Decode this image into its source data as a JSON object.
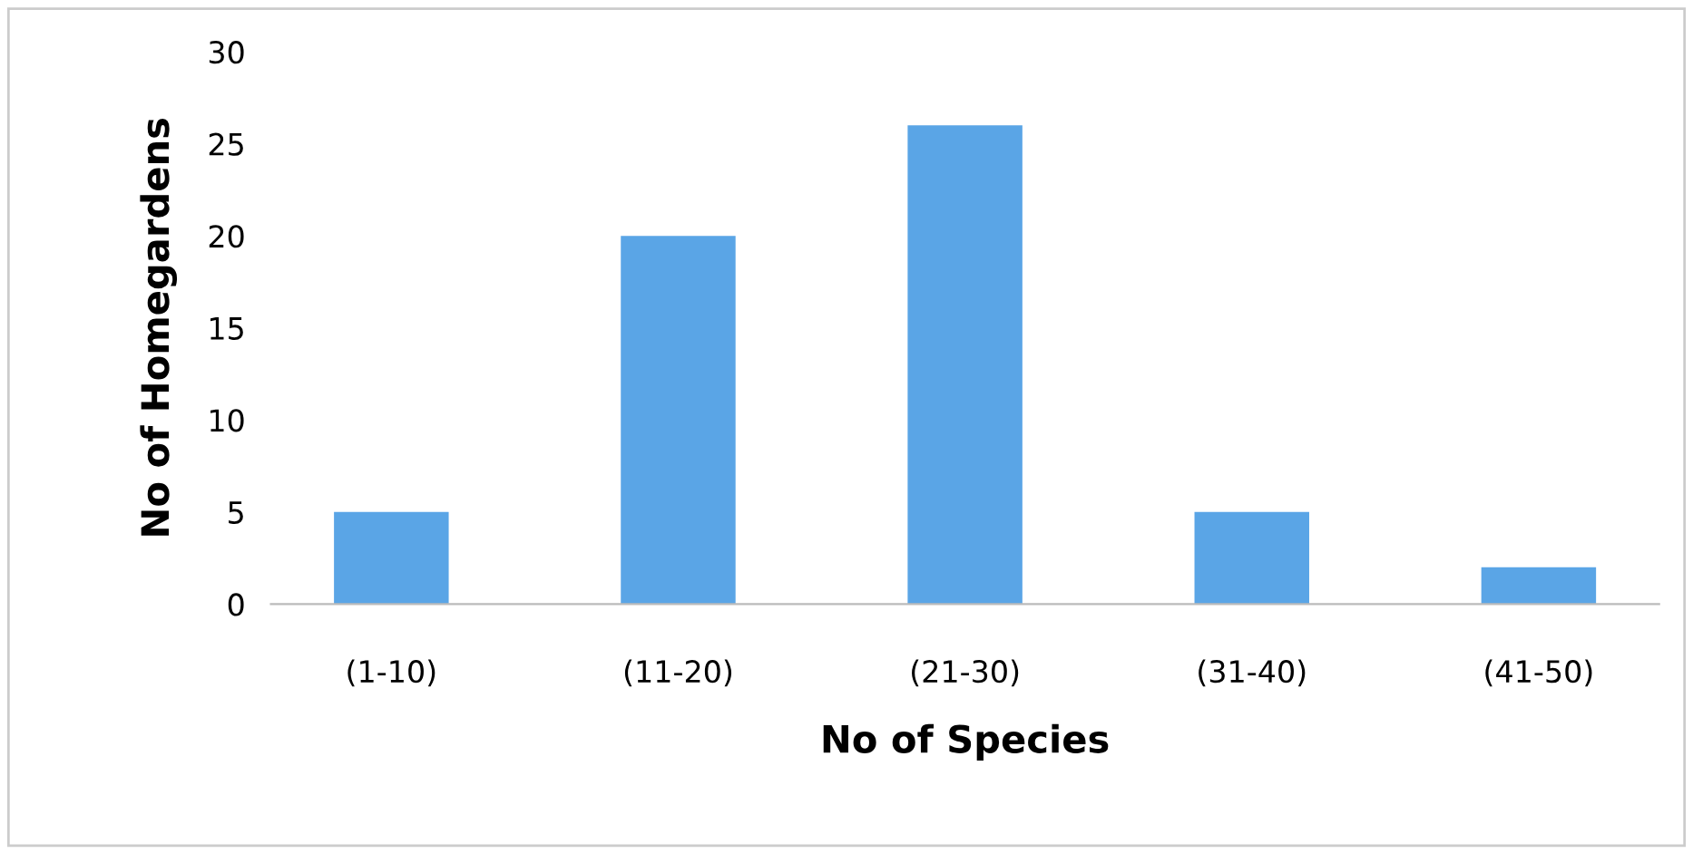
{
  "chart_data": {
    "type": "bar",
    "xlabel": "No of Species",
    "ylabel": "No of Homegardens",
    "categories": [
      "(1-10)",
      "(11-20)",
      "(21-30)",
      "(31-40)",
      "(41-50)"
    ],
    "values": [
      5,
      20,
      26,
      5,
      2
    ],
    "color": "#5aa5e6",
    "ylim": [
      0,
      30
    ],
    "yticks": [
      0,
      5,
      10,
      15,
      20,
      25,
      30
    ],
    "grid": false
  }
}
